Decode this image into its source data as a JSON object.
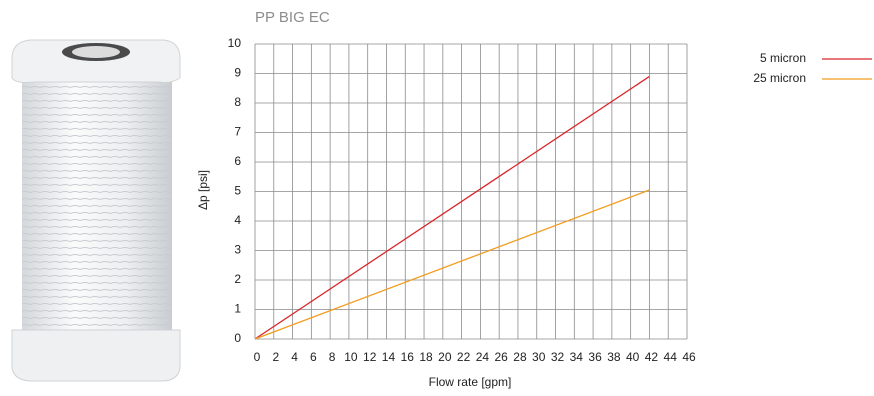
{
  "chart_data": {
    "type": "line",
    "title": "PP BIG EC",
    "x_label": "Flow rate [gpm]",
    "y_label": "Δp [psi]",
    "x": [
      0,
      42
    ],
    "series": [
      {
        "name": "5 micron",
        "color": "#d9262c",
        "values": [
          0,
          8.9
        ]
      },
      {
        "name": "25 micron",
        "color": "#f39c1f",
        "values": [
          0,
          5.05
        ]
      }
    ],
    "xlim": [
      0,
      46
    ],
    "xticks": [
      0,
      2,
      4,
      6,
      8,
      10,
      12,
      14,
      16,
      18,
      20,
      22,
      24,
      26,
      28,
      30,
      32,
      34,
      36,
      38,
      40,
      42,
      44,
      46
    ],
    "ylim": [
      0,
      10
    ],
    "yticks": [
      0,
      1,
      2,
      3,
      4,
      5,
      6,
      7,
      8,
      9,
      10
    ],
    "grid": true,
    "legend": "upper right"
  }
}
